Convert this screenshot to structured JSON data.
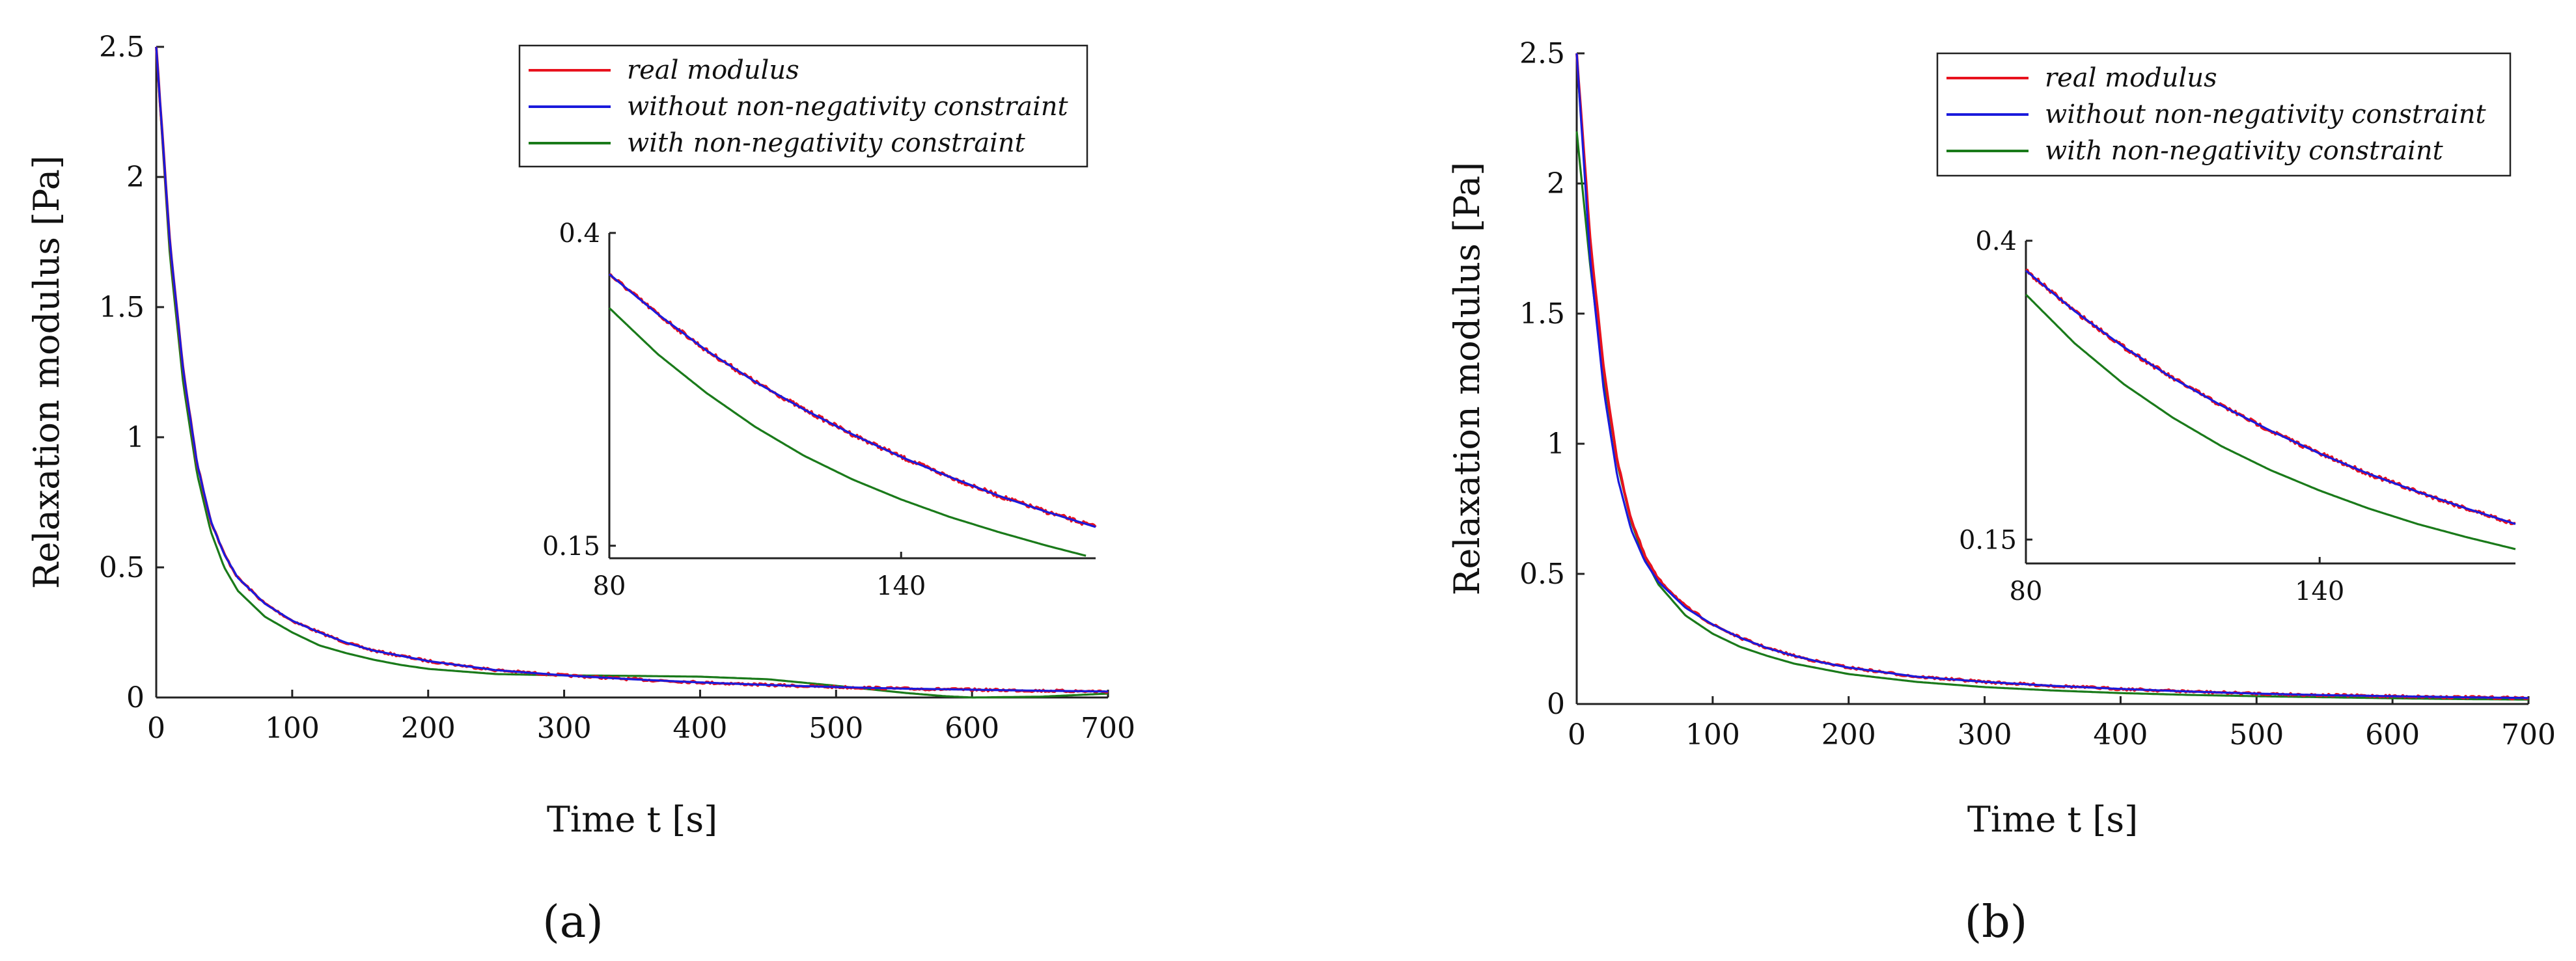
{
  "chart_data": [
    {
      "type": "line",
      "panel_label": "(a)",
      "xlabel": "Time t [s]",
      "ylabel": "Relaxation modulus [Pa]",
      "xlim": [
        0,
        700
      ],
      "ylim": [
        0,
        2.5
      ],
      "x_ticks": [
        "0",
        "100",
        "200",
        "300",
        "400",
        "500",
        "600",
        "700"
      ],
      "y_ticks": [
        "0",
        "0.5",
        "1",
        "1.5",
        "2",
        "2.5"
      ],
      "legend_position": "top-right",
      "series": [
        {
          "name": "real modulus",
          "color": "#e8121e",
          "noisy": true,
          "x": [
            0,
            10,
            20,
            30,
            40,
            50,
            60,
            80,
            100,
            120,
            140,
            160,
            180,
            200,
            250,
            300,
            350,
            400,
            450,
            500,
            550,
            600,
            650,
            700
          ],
          "y": [
            2.5,
            1.75,
            1.25,
            0.9,
            0.68,
            0.55,
            0.46,
            0.36,
            0.295,
            0.25,
            0.21,
            0.18,
            0.16,
            0.14,
            0.105,
            0.085,
            0.07,
            0.058,
            0.048,
            0.04,
            0.034,
            0.03,
            0.026,
            0.023
          ]
        },
        {
          "name": "without non-negativity constraint",
          "color": "#1a1adc",
          "noisy": false,
          "x": [
            0,
            10,
            20,
            30,
            40,
            50,
            60,
            80,
            100,
            120,
            140,
            160,
            180,
            200,
            250,
            300,
            350,
            400,
            450,
            500,
            550,
            600,
            650,
            700
          ],
          "y": [
            2.5,
            1.75,
            1.25,
            0.9,
            0.68,
            0.55,
            0.46,
            0.36,
            0.295,
            0.25,
            0.21,
            0.18,
            0.16,
            0.14,
            0.105,
            0.085,
            0.07,
            0.058,
            0.048,
            0.04,
            0.034,
            0.03,
            0.026,
            0.023
          ]
        },
        {
          "name": "with non-negativity constraint",
          "color": "#1a7a1a",
          "noisy": false,
          "x": [
            0,
            10,
            20,
            30,
            40,
            50,
            60,
            80,
            100,
            120,
            140,
            160,
            180,
            200,
            250,
            300,
            350,
            400,
            450,
            500,
            550,
            580,
            600,
            650,
            700
          ],
          "y": [
            2.5,
            1.7,
            1.2,
            0.86,
            0.64,
            0.5,
            0.41,
            0.31,
            0.25,
            0.2,
            0.17,
            0.145,
            0.125,
            0.11,
            0.09,
            0.085,
            0.083,
            0.08,
            0.07,
            0.045,
            0.018,
            0.005,
            0.0,
            0.003,
            0.015
          ]
        }
      ],
      "inset": {
        "xlim": [
          80,
          180
        ],
        "ylim": [
          0.14,
          0.4
        ],
        "x_ticks": [
          "80",
          "140"
        ],
        "y_ticks": [
          "0.15",
          "0.4"
        ],
        "series": [
          {
            "name": "real modulus",
            "color": "#e8121e",
            "noisy": true,
            "x": [
              80,
              90,
              100,
              110,
              120,
              130,
              140,
              150,
              160,
              170,
              180
            ],
            "y": [
              0.367,
              0.335,
              0.306,
              0.281,
              0.259,
              0.239,
              0.221,
              0.205,
              0.19,
              0.177,
              0.165
            ]
          },
          {
            "name": "without non-negativity constraint",
            "color": "#1a1adc",
            "noisy": false,
            "x": [
              80,
              90,
              100,
              110,
              120,
              130,
              140,
              150,
              160,
              170,
              180
            ],
            "y": [
              0.367,
              0.335,
              0.306,
              0.281,
              0.259,
              0.239,
              0.221,
              0.205,
              0.19,
              0.177,
              0.165
            ]
          },
          {
            "name": "with non-negativity constraint",
            "color": "#1a7a1a",
            "noisy": false,
            "x": [
              80,
              90,
              100,
              110,
              120,
              130,
              140,
              150,
              160,
              170,
              178
            ],
            "y": [
              0.34,
              0.303,
              0.272,
              0.245,
              0.222,
              0.203,
              0.187,
              0.173,
              0.161,
              0.15,
              0.142
            ]
          }
        ]
      }
    },
    {
      "type": "line",
      "panel_label": "(b)",
      "xlabel": "Time t [s]",
      "ylabel": "Relaxation modulus [Pa]",
      "xlim": [
        0,
        700
      ],
      "ylim": [
        0,
        2.5
      ],
      "x_ticks": [
        "0",
        "100",
        "200",
        "300",
        "400",
        "500",
        "600",
        "700"
      ],
      "y_ticks": [
        "0",
        "0.5",
        "1",
        "1.5",
        "2",
        "2.5"
      ],
      "legend_position": "top-right",
      "series": [
        {
          "name": "real modulus",
          "color": "#e8121e",
          "noisy": true,
          "x": [
            0,
            10,
            20,
            30,
            40,
            50,
            60,
            80,
            100,
            120,
            140,
            160,
            180,
            200,
            250,
            300,
            350,
            400,
            450,
            500,
            550,
            600,
            650,
            700
          ],
          "y": [
            2.5,
            1.78,
            1.28,
            0.93,
            0.71,
            0.57,
            0.48,
            0.375,
            0.305,
            0.255,
            0.215,
            0.185,
            0.16,
            0.14,
            0.105,
            0.085,
            0.07,
            0.058,
            0.048,
            0.04,
            0.034,
            0.03,
            0.026,
            0.023
          ]
        },
        {
          "name": "without non-negativity constraint",
          "color": "#1a1adc",
          "noisy": false,
          "x": [
            0,
            10,
            20,
            30,
            40,
            50,
            60,
            80,
            100,
            120,
            140,
            160,
            180,
            200,
            250,
            300,
            350,
            400,
            450,
            500,
            550,
            600,
            650,
            700
          ],
          "y": [
            2.5,
            1.7,
            1.2,
            0.87,
            0.67,
            0.55,
            0.47,
            0.37,
            0.305,
            0.255,
            0.215,
            0.185,
            0.16,
            0.14,
            0.105,
            0.085,
            0.07,
            0.058,
            0.048,
            0.04,
            0.034,
            0.03,
            0.026,
            0.023
          ]
        },
        {
          "name": "with non-negativity constraint",
          "color": "#1a7a1a",
          "noisy": false,
          "x": [
            0,
            10,
            20,
            30,
            40,
            50,
            60,
            80,
            100,
            120,
            140,
            160,
            180,
            200,
            250,
            300,
            350,
            400,
            450,
            500,
            550,
            600,
            650,
            700
          ],
          "y": [
            2.2,
            1.68,
            1.25,
            0.92,
            0.7,
            0.56,
            0.46,
            0.34,
            0.27,
            0.22,
            0.185,
            0.155,
            0.135,
            0.115,
            0.085,
            0.065,
            0.052,
            0.042,
            0.035,
            0.03,
            0.026,
            0.022,
            0.019,
            0.017
          ]
        }
      ],
      "inset": {
        "xlim": [
          80,
          180
        ],
        "ylim": [
          0.13,
          0.4
        ],
        "x_ticks": [
          "80",
          "140"
        ],
        "y_ticks": [
          "0.15",
          "0.4"
        ],
        "series": [
          {
            "name": "real modulus",
            "color": "#e8121e",
            "noisy": true,
            "x": [
              80,
              90,
              100,
              110,
              120,
              130,
              140,
              150,
              160,
              170,
              180
            ],
            "y": [
              0.375,
              0.341,
              0.311,
              0.285,
              0.262,
              0.241,
              0.222,
              0.205,
              0.19,
              0.176,
              0.163
            ]
          },
          {
            "name": "without non-negativity constraint",
            "color": "#1a1adc",
            "noisy": false,
            "x": [
              80,
              90,
              100,
              110,
              120,
              130,
              140,
              150,
              160,
              170,
              180
            ],
            "y": [
              0.375,
              0.341,
              0.311,
              0.285,
              0.262,
              0.241,
              0.222,
              0.205,
              0.19,
              0.176,
              0.163
            ]
          },
          {
            "name": "with non-negativity constraint",
            "color": "#1a7a1a",
            "noisy": false,
            "x": [
              80,
              90,
              100,
              110,
              120,
              130,
              140,
              150,
              160,
              170,
              180
            ],
            "y": [
              0.355,
              0.314,
              0.28,
              0.252,
              0.228,
              0.208,
              0.191,
              0.176,
              0.163,
              0.152,
              0.142
            ]
          }
        ]
      }
    }
  ]
}
